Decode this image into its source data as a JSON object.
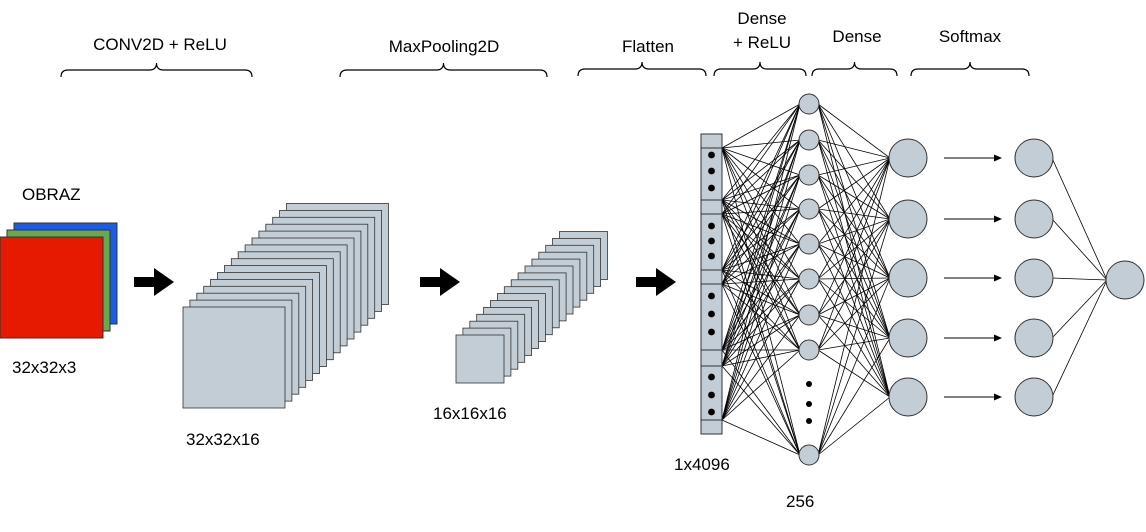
{
  "stages": {
    "conv": "CONV2D + ReLU",
    "pool": "MaxPooling2D",
    "flatten": "Flatten",
    "dense_relu_1": "Dense",
    "dense_relu_2": "+ ReLU",
    "dense": "Dense",
    "softmax": "Softmax"
  },
  "input": {
    "title": "OBRAZ",
    "shape": "32x32x3",
    "channel_colors": [
      "#e61a00",
      "#6aa84f",
      "#1a5ce6"
    ]
  },
  "conv_output": {
    "shape": "32x32x16",
    "maps": 16
  },
  "pool_output": {
    "shape": "16x16x16",
    "maps": 16
  },
  "flatten_output": {
    "shape": "1x4096"
  },
  "dense_layer": {
    "units": "256"
  },
  "colors": {
    "node_fill": "#c3cdd6",
    "stroke": "#000000"
  },
  "icons": [
    "arrow-right-icon",
    "ellipsis-vertical-icon"
  ]
}
